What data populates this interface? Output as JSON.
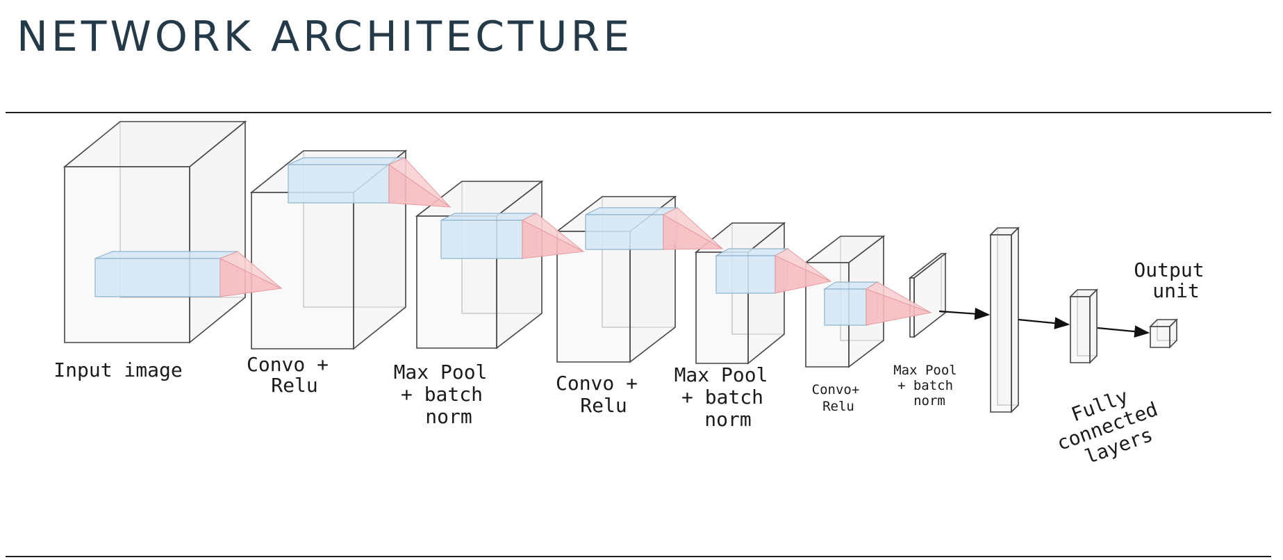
{
  "title": "NETWORK ARCHITECTURE",
  "labels": {
    "input_image": "Input image",
    "conv1_line1": "Convo +",
    "conv1_line2": "Relu",
    "pool1_line1": "Max Pool",
    "pool1_line2": "+ batch",
    "pool1_line3": "norm",
    "conv2_line1": "Convo +",
    "conv2_line2": "Relu",
    "pool2_line1": "Max Pool",
    "pool2_line2": "+ batch",
    "pool2_line3": "norm",
    "conv3_line1": "Convo+",
    "conv3_line2": "Relu",
    "pool3_line1": "Max Pool",
    "pool3_line2": "+ batch",
    "pool3_line3": "norm",
    "fc_line1": "Fully",
    "fc_line2": "connected",
    "fc_line3": "layers",
    "output_line1": "Output",
    "output_line2": "unit"
  },
  "colors": {
    "title": "#243a48",
    "box_fill": "#f1f1f1",
    "box_edge": "#444444",
    "kernel_fill": "#d4e8f6",
    "kernel_edge": "#8fb3cf",
    "cone_fill": "#f7bcc0",
    "arrow": "#111111"
  }
}
